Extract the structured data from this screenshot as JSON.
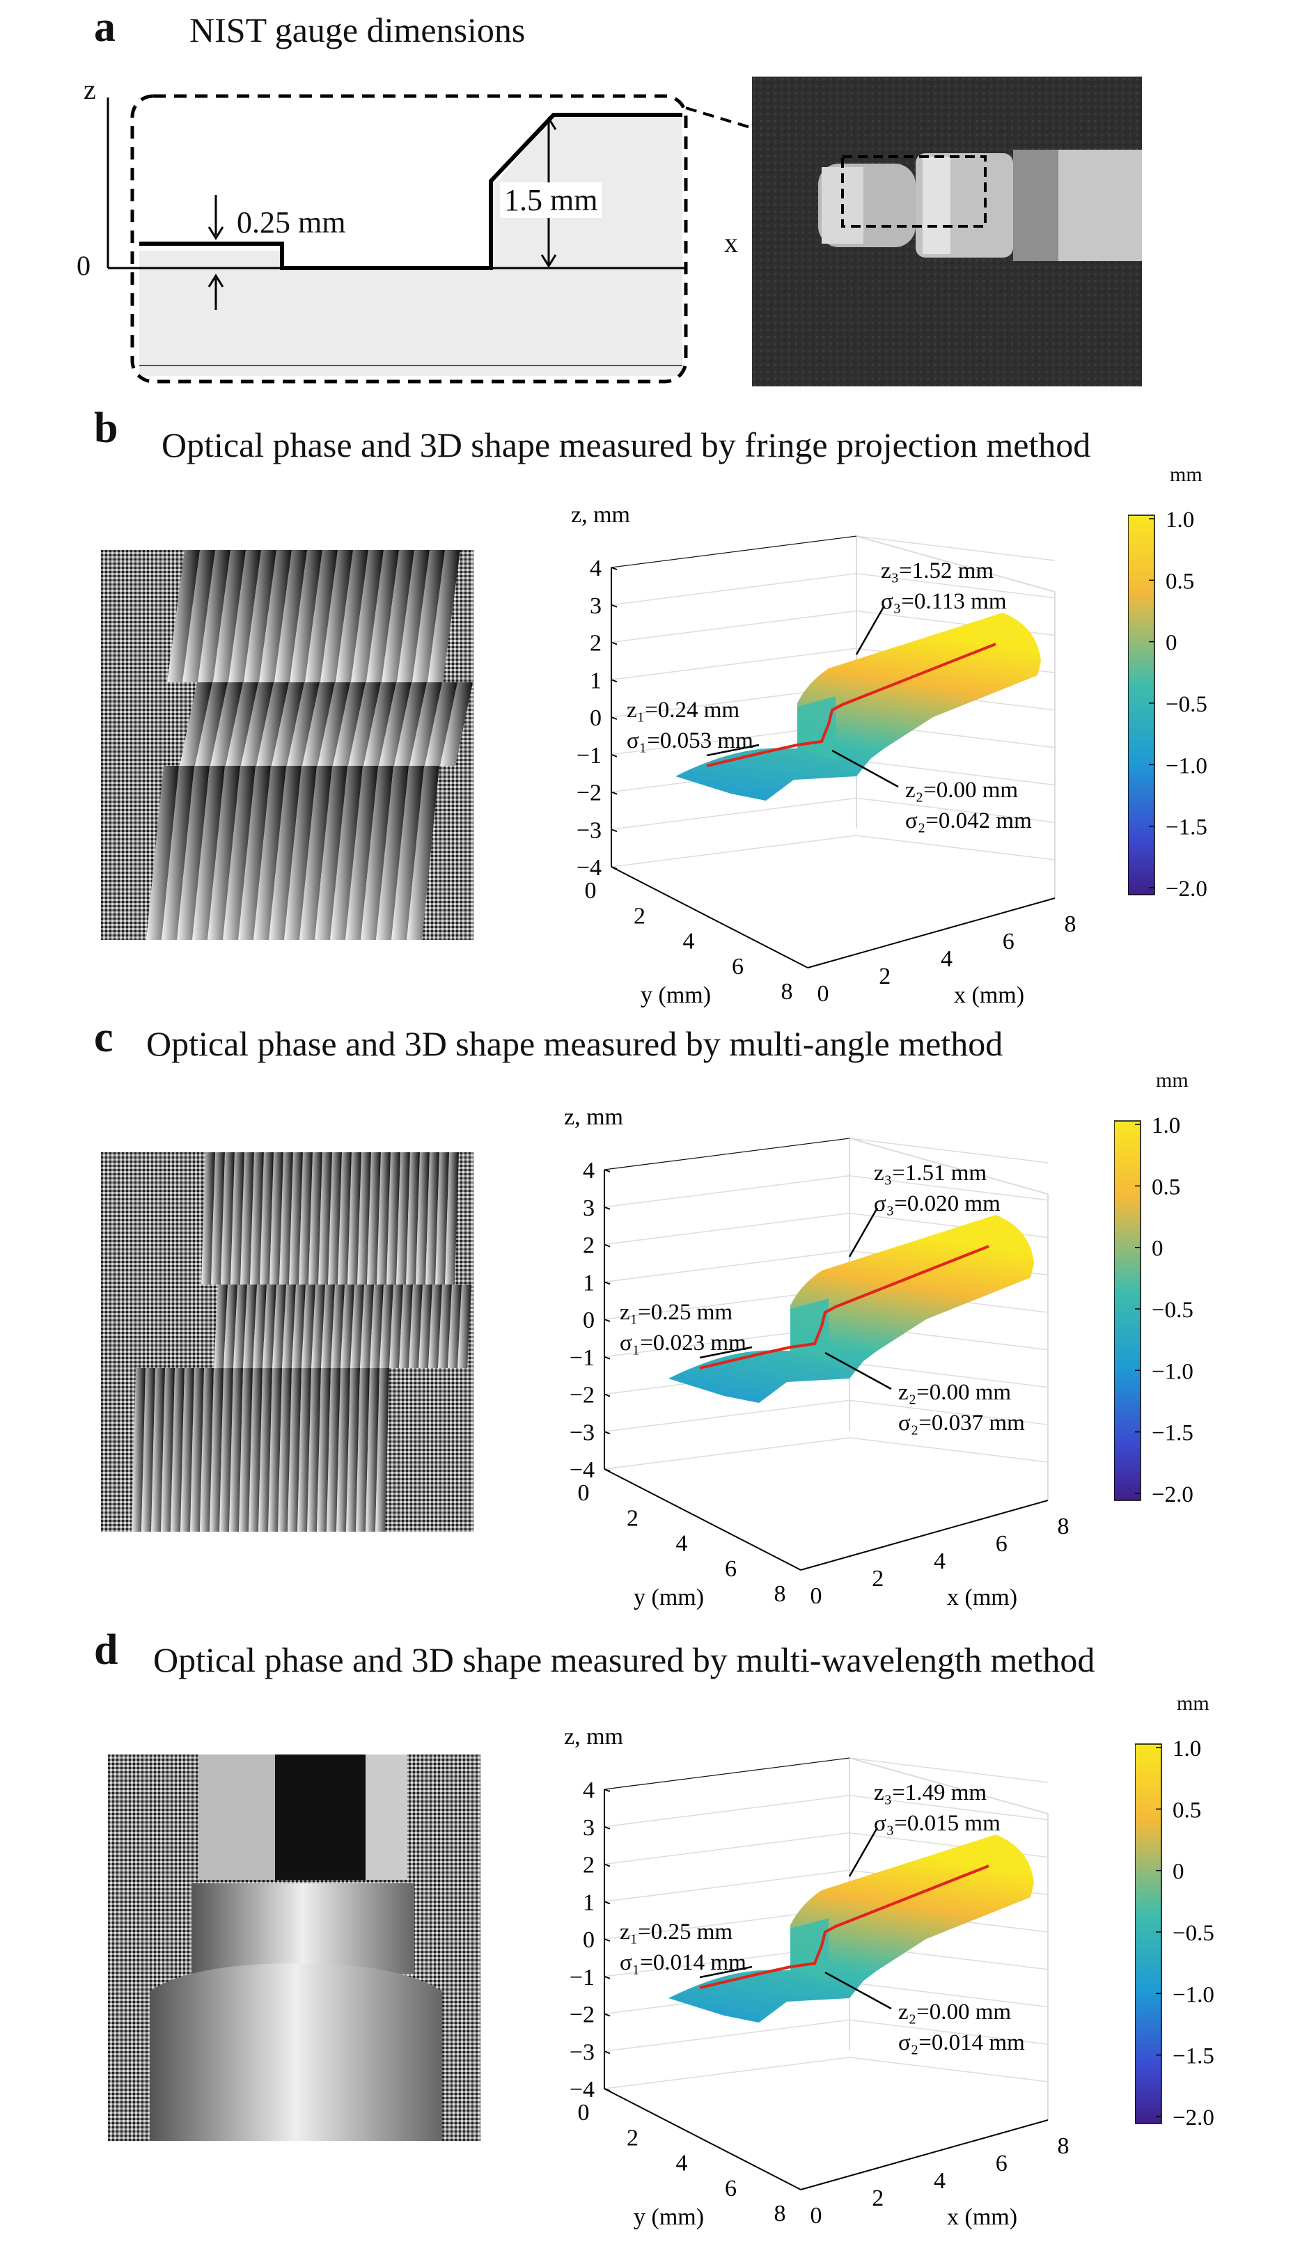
{
  "panel_a": {
    "label": "a",
    "title": "NIST gauge dimensions",
    "z_axis": "z",
    "x_axis": "x",
    "origin": "0",
    "dim_step1": "0.25 mm",
    "dim_step2": "1.5 mm"
  },
  "panels": [
    {
      "label": "b",
      "title": "Optical phase and 3D shape measured by fringe projection method",
      "annotations": [
        {
          "z": "z₁=0.24 mm",
          "sigma": "σ₁=0.053 mm"
        },
        {
          "z": "z₂=0.00 mm",
          "sigma": "σ₂=0.042 mm"
        },
        {
          "z": "z₃=1.52 mm",
          "sigma": "σ₃=0.113 mm"
        }
      ]
    },
    {
      "label": "c",
      "title": "Optical phase and 3D shape measured by multi-angle method",
      "annotations": [
        {
          "z": "z₁=0.25 mm",
          "sigma": "σ₁=0.023 mm"
        },
        {
          "z": "z₂=0.00 mm",
          "sigma": "σ₂=0.037 mm"
        },
        {
          "z": "z₃=1.51 mm",
          "sigma": "σ₃=0.020 mm"
        }
      ]
    },
    {
      "label": "d",
      "title": "Optical phase and 3D shape measured by multi-wavelength method",
      "annotations": [
        {
          "z": "z₁=0.25 mm",
          "sigma": "σ₁=0.014 mm"
        },
        {
          "z": "z₂=0.00 mm",
          "sigma": "σ₂=0.014 mm"
        },
        {
          "z": "z₃=1.49 mm",
          "sigma": "σ₃=0.015 mm"
        }
      ]
    }
  ],
  "axes3d": {
    "z_label": "z, mm",
    "x_label": "x (mm)",
    "y_label": "y (mm)",
    "z_ticks": [
      "4",
      "3",
      "2",
      "1",
      "0",
      "−1",
      "−2",
      "−3",
      "−4"
    ],
    "xy_ticks": [
      "0",
      "2",
      "4",
      "6",
      "8"
    ]
  },
  "colorbar": {
    "unit": "mm",
    "ticks": [
      "1.0",
      "0.5",
      "0",
      "−0.5",
      "−1.0",
      "−1.5",
      "−2.0"
    ],
    "colors": [
      "#f9e721",
      "#f5b93a",
      "#3fbcab",
      "#1f9ad4",
      "#3b4bd0",
      "#3f1f8a"
    ]
  },
  "profile_color": "#e0241b"
}
